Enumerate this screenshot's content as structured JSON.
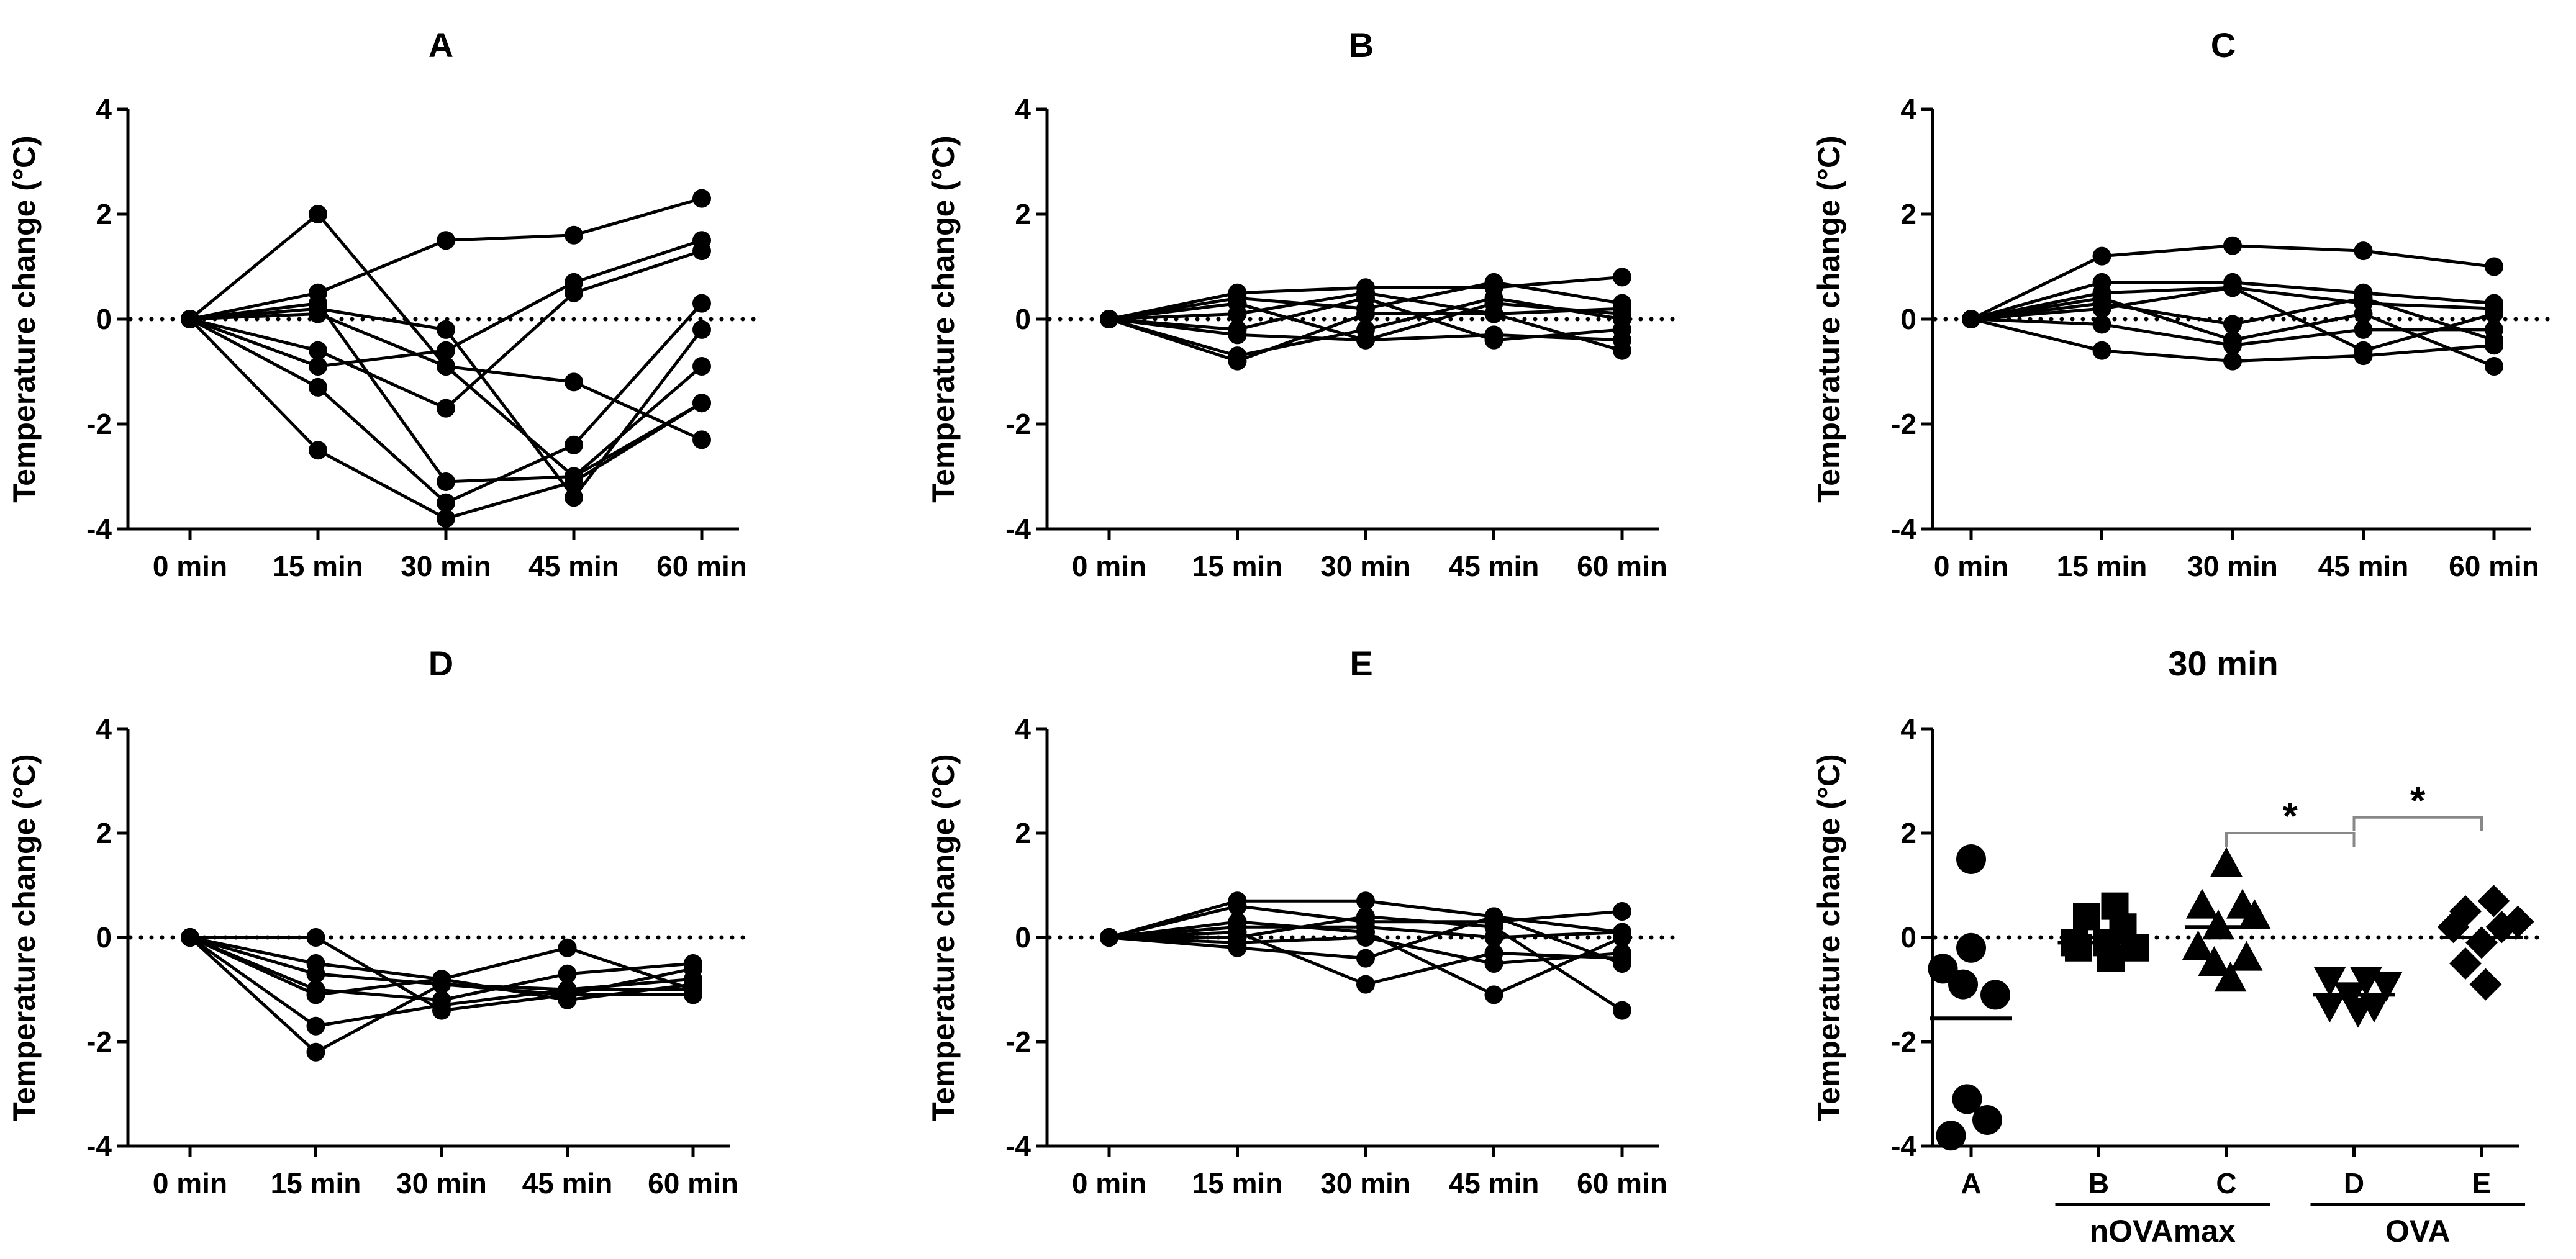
{
  "colors": {
    "ink": "#000000",
    "bracket": "#888888",
    "background": "#ffffff"
  },
  "chart_data": [
    {
      "type": "line",
      "title": "A",
      "ylabel": "Temperature change (°C)",
      "xlabel": "",
      "categories": [
        "0 min",
        "15 min",
        "30 min",
        "45 min",
        "60 min"
      ],
      "ylim": [
        -4,
        4
      ],
      "yticks": [
        -4,
        -2,
        0,
        2,
        4
      ],
      "reference_line": 0,
      "series": [
        {
          "values": [
            0,
            2.0,
            -0.9,
            -3.0,
            -0.9
          ]
        },
        {
          "values": [
            0,
            0.5,
            1.5,
            1.6,
            2.3
          ]
        },
        {
          "values": [
            0,
            0.2,
            -0.2,
            -3.4,
            -0.2
          ]
        },
        {
          "values": [
            0,
            0.1,
            -0.9,
            -1.2,
            -2.3
          ]
        },
        {
          "values": [
            0,
            -0.6,
            -1.7,
            0.5,
            1.3
          ]
        },
        {
          "values": [
            0,
            -0.9,
            -0.6,
            0.7,
            1.5
          ]
        },
        {
          "values": [
            0,
            -1.3,
            -3.5,
            -2.4,
            0.3
          ]
        },
        {
          "values": [
            0,
            -2.5,
            -3.8,
            -3.1,
            -1.6
          ]
        },
        {
          "values": [
            0,
            0.3,
            -3.1,
            -3.0,
            -1.6
          ]
        }
      ]
    },
    {
      "type": "line",
      "title": "B",
      "ylabel": "Temperature change (°C)",
      "xlabel": "",
      "categories": [
        "0 min",
        "15 min",
        "30 min",
        "45 min",
        "60 min"
      ],
      "ylim": [
        -4,
        4
      ],
      "yticks": [
        -4,
        -2,
        0,
        2,
        4
      ],
      "reference_line": 0,
      "series": [
        {
          "values": [
            0,
            0.5,
            0.6,
            0.6,
            0.8
          ]
        },
        {
          "values": [
            0,
            0.4,
            0.2,
            0.7,
            0.3
          ]
        },
        {
          "values": [
            0,
            0.3,
            -0.4,
            0.3,
            0.1
          ]
        },
        {
          "values": [
            0,
            -0.2,
            0.4,
            -0.4,
            -0.2
          ]
        },
        {
          "values": [
            0,
            -0.8,
            0.1,
            0.1,
            -0.6
          ]
        },
        {
          "values": [
            0,
            -0.7,
            -0.2,
            0.4,
            0.0
          ]
        },
        {
          "values": [
            0,
            -0.3,
            -0.4,
            -0.3,
            -0.4
          ]
        },
        {
          "values": [
            0,
            0.1,
            0.5,
            0.1,
            0.2
          ]
        }
      ]
    },
    {
      "type": "line",
      "title": "C",
      "ylabel": "Temperature change (°C)",
      "xlabel": "",
      "categories": [
        "0 min",
        "15 min",
        "30 min",
        "45 min",
        "60 min"
      ],
      "ylim": [
        -4,
        4
      ],
      "yticks": [
        -4,
        -2,
        0,
        2,
        4
      ],
      "reference_line": 0,
      "series": [
        {
          "values": [
            0,
            1.2,
            1.4,
            1.3,
            1.0
          ]
        },
        {
          "values": [
            0,
            0.7,
            0.7,
            0.5,
            0.3
          ]
        },
        {
          "values": [
            0,
            0.5,
            0.6,
            0.3,
            0.2
          ]
        },
        {
          "values": [
            0,
            0.3,
            -0.1,
            0.4,
            -0.4
          ]
        },
        {
          "values": [
            0,
            0.4,
            -0.4,
            0.1,
            -0.9
          ]
        },
        {
          "values": [
            0,
            -0.1,
            -0.5,
            -0.2,
            -0.2
          ]
        },
        {
          "values": [
            0,
            -0.6,
            -0.8,
            -0.7,
            -0.5
          ]
        },
        {
          "values": [
            0,
            0.2,
            0.6,
            -0.6,
            0.1
          ]
        }
      ]
    },
    {
      "type": "line",
      "title": "D",
      "ylabel": "Temperature change (°C)",
      "xlabel": "",
      "categories": [
        "0 min",
        "15 min",
        "30 min",
        "45 min",
        "60 min"
      ],
      "ylim": [
        -4,
        4
      ],
      "yticks": [
        -4,
        -2,
        0,
        2,
        4
      ],
      "reference_line": 0,
      "series": [
        {
          "values": [
            0,
            0.0,
            -1.4,
            -1.1,
            -1.1
          ]
        },
        {
          "values": [
            0,
            -0.5,
            -0.8,
            -0.2,
            -1.0
          ]
        },
        {
          "values": [
            0,
            -0.7,
            -0.9,
            -1.0,
            -0.8
          ]
        },
        {
          "values": [
            0,
            -1.0,
            -1.2,
            -0.7,
            -0.5
          ]
        },
        {
          "values": [
            0,
            -1.1,
            -0.8,
            -1.2,
            -0.9
          ]
        },
        {
          "values": [
            0,
            -1.7,
            -1.3,
            -1.0,
            -1.0
          ]
        },
        {
          "values": [
            0,
            -2.2,
            -0.9,
            -1.1,
            -0.6
          ]
        }
      ]
    },
    {
      "type": "line",
      "title": "E",
      "ylabel": "Temperature change (°C)",
      "xlabel": "",
      "categories": [
        "0 min",
        "15 min",
        "30 min",
        "45 min",
        "60 min"
      ],
      "ylim": [
        -4,
        4
      ],
      "yticks": [
        -4,
        -2,
        0,
        2,
        4
      ],
      "reference_line": 0,
      "series": [
        {
          "values": [
            0,
            0.7,
            0.7,
            0.4,
            -0.5
          ]
        },
        {
          "values": [
            0,
            0.6,
            0.3,
            0.3,
            0.5
          ]
        },
        {
          "values": [
            0,
            0.3,
            0.1,
            -1.1,
            0.0
          ]
        },
        {
          "values": [
            0,
            0.1,
            -0.9,
            -0.3,
            -0.4
          ]
        },
        {
          "values": [
            0,
            0.0,
            0.4,
            0.2,
            -1.4
          ]
        },
        {
          "values": [
            0,
            -0.2,
            -0.4,
            0.4,
            0.1
          ]
        },
        {
          "values": [
            0,
            -0.1,
            0.0,
            -0.5,
            -0.3
          ]
        },
        {
          "values": [
            0,
            0.2,
            0.2,
            0.0,
            0.1
          ]
        }
      ]
    },
    {
      "type": "scatter",
      "title": "30 min",
      "ylabel": "Temperature change (°C)",
      "xlabel": "",
      "categories": [
        "A",
        "B",
        "C",
        "D",
        "E"
      ],
      "ylim": [
        -4,
        4
      ],
      "yticks": [
        -4,
        -2,
        0,
        2,
        4
      ],
      "reference_line": 0,
      "groups": [
        {
          "label": "nOVAmax",
          "categories": [
            "B",
            "C"
          ]
        },
        {
          "label": "OVA",
          "categories": [
            "D",
            "E"
          ]
        }
      ],
      "significance": [
        {
          "from": "C",
          "to": "D",
          "label": "*"
        },
        {
          "from": "D",
          "to": "E",
          "label": "*"
        }
      ],
      "series": [
        {
          "category": "A",
          "marker": "circle",
          "mean": -1.55,
          "points": [
            [
              0.0,
              1.5
            ],
            [
              -0.35,
              -0.6
            ],
            [
              0.0,
              -0.2
            ],
            [
              -0.1,
              -0.9
            ],
            [
              0.3,
              -1.1
            ],
            [
              -0.05,
              -3.1
            ],
            [
              0.2,
              -3.5
            ],
            [
              -0.25,
              -3.8
            ]
          ]
        },
        {
          "category": "B",
          "marker": "square",
          "mean": -0.1,
          "points": [
            [
              0.2,
              0.6
            ],
            [
              -0.15,
              0.4
            ],
            [
              0.3,
              0.2
            ],
            [
              -0.3,
              -0.1
            ],
            [
              0.1,
              -0.1
            ],
            [
              0.45,
              -0.2
            ],
            [
              -0.25,
              -0.2
            ],
            [
              0.15,
              -0.4
            ]
          ]
        },
        {
          "category": "C",
          "marker": "triangle-up",
          "mean": 0.2,
          "points": [
            [
              0.0,
              1.4
            ],
            [
              -0.3,
              0.6
            ],
            [
              0.2,
              0.6
            ],
            [
              0.35,
              0.4
            ],
            [
              -0.1,
              0.2
            ],
            [
              -0.35,
              -0.2
            ],
            [
              0.25,
              -0.4
            ],
            [
              -0.15,
              -0.5
            ],
            [
              0.05,
              -0.8
            ]
          ]
        },
        {
          "category": "D",
          "marker": "triangle-down",
          "mean": -1.1,
          "points": [
            [
              -0.3,
              -0.8
            ],
            [
              0.15,
              -0.8
            ],
            [
              0.4,
              -0.9
            ],
            [
              -0.05,
              -1.1
            ],
            [
              0.25,
              -1.3
            ],
            [
              -0.3,
              -1.3
            ],
            [
              0.05,
              -1.4
            ]
          ]
        },
        {
          "category": "E",
          "marker": "diamond",
          "mean": 0.0,
          "points": [
            [
              -0.2,
              0.5
            ],
            [
              0.15,
              0.7
            ],
            [
              0.45,
              0.3
            ],
            [
              -0.35,
              0.2
            ],
            [
              0.25,
              0.2
            ],
            [
              0.0,
              -0.1
            ],
            [
              -0.2,
              -0.5
            ],
            [
              0.05,
              -0.9
            ]
          ]
        }
      ]
    }
  ]
}
